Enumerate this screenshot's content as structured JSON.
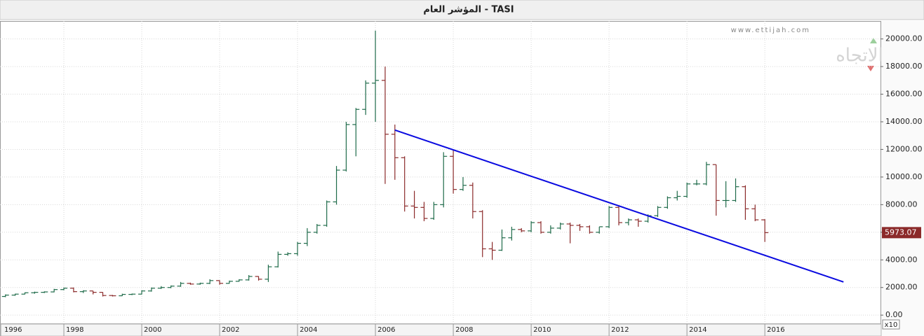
{
  "chart_data": {
    "type": "ohlc",
    "title": "المؤشر العام - TASI",
    "watermark": "www.ettijah.com",
    "logo_text": "الاتجاه",
    "x_multiplier": "x10",
    "up_color": "#1f6b4a",
    "down_color": "#8b2a2a",
    "grid": true,
    "xlim": [
      1996.36,
      2018.97
    ],
    "ylim": [
      -600,
      21300
    ],
    "xticks": [
      1996,
      1998,
      2000,
      2002,
      2004,
      2006,
      2008,
      2010,
      2012,
      2014,
      2016
    ],
    "yticks": [
      {
        "value": 0,
        "label": "0.00"
      },
      {
        "value": 2000,
        "label": "2000.00"
      },
      {
        "value": 4000,
        "label": "4000.00"
      },
      {
        "value": 6000,
        "label": "6000.00"
      },
      {
        "value": 8000,
        "label": "8000.00"
      },
      {
        "value": 10000,
        "label": "10000.00"
      },
      {
        "value": 12000,
        "label": "12000.00"
      },
      {
        "value": 14000,
        "label": "14000.00"
      },
      {
        "value": 16000,
        "label": "16000.00"
      },
      {
        "value": 18000,
        "label": "18000.00"
      },
      {
        "value": 20000,
        "label": "20000.00"
      }
    ],
    "x": [
      1996.5,
      1996.75,
      1997,
      1997.25,
      1997.5,
      1997.75,
      1998,
      1998.25,
      1998.5,
      1998.75,
      1999,
      1999.25,
      1999.5,
      1999.75,
      2000,
      2000.25,
      2000.5,
      2000.75,
      2001,
      2001.25,
      2001.5,
      2001.75,
      2002,
      2002.25,
      2002.5,
      2002.75,
      2003,
      2003.25,
      2003.5,
      2003.75,
      2004,
      2004.25,
      2004.5,
      2004.75,
      2005,
      2005.25,
      2005.5,
      2005.75,
      2006,
      2006.25,
      2006.5,
      2006.75,
      2007,
      2007.25,
      2007.5,
      2007.75,
      2008,
      2008.25,
      2008.5,
      2008.75,
      2009,
      2009.25,
      2009.5,
      2009.75,
      2010,
      2010.25,
      2010.5,
      2010.75,
      2011,
      2011.25,
      2011.5,
      2011.75,
      2012,
      2012.25,
      2012.5,
      2012.75,
      2013,
      2013.25,
      2013.5,
      2013.75,
      2014,
      2014.25,
      2014.5,
      2014.75,
      2015,
      2015.25,
      2015.5,
      2015.75,
      2016
    ],
    "open": [
      1350,
      1450,
      1520,
      1620,
      1650,
      1680,
      1850,
      1950,
      1700,
      1750,
      1650,
      1420,
      1400,
      1500,
      1520,
      1750,
      1950,
      2000,
      2100,
      2300,
      2250,
      2300,
      2500,
      2300,
      2450,
      2550,
      2800,
      2600,
      3500,
      4400,
      4450,
      5200,
      6000,
      6500,
      8200,
      10500,
      13800,
      14900,
      16800,
      17000,
      13100,
      11400,
      7900,
      7800,
      7000,
      8000,
      11500,
      9100,
      9400,
      7500,
      4800,
      4700,
      5600,
      6200,
      6100,
      6700,
      6000,
      6300,
      6600,
      6500,
      6400,
      6000,
      6400,
      7800,
      6700,
      6900,
      6800,
      7200,
      7800,
      8500,
      8600,
      9500,
      9500,
      10900,
      8300,
      8300,
      9300,
      7700,
      6900
    ],
    "high": [
      1500,
      1550,
      1650,
      1700,
      1720,
      1900,
      2000,
      2000,
      1800,
      1760,
      1660,
      1460,
      1550,
      1560,
      1800,
      2000,
      2100,
      2150,
      2400,
      2350,
      2350,
      2600,
      2520,
      2500,
      2600,
      2900,
      2820,
      3650,
      4600,
      4550,
      5300,
      6300,
      6600,
      8300,
      10800,
      14000,
      15000,
      17000,
      20600,
      18000,
      13800,
      11500,
      9000,
      8200,
      8200,
      11800,
      12000,
      10000,
      9600,
      7600,
      5300,
      6200,
      6400,
      6300,
      6800,
      6800,
      6500,
      6700,
      6700,
      6600,
      6500,
      6400,
      7900,
      7950,
      7000,
      7000,
      7300,
      7900,
      8600,
      9000,
      9600,
      9800,
      11100,
      10900,
      9700,
      9900,
      9400,
      8000,
      6950
    ],
    "low": [
      1300,
      1400,
      1500,
      1550,
      1600,
      1650,
      1800,
      1650,
      1600,
      1500,
      1350,
      1350,
      1380,
      1450,
      1500,
      1700,
      1900,
      1950,
      2050,
      2200,
      2200,
      2250,
      2200,
      2280,
      2420,
      2500,
      2500,
      2400,
      3450,
      4300,
      4300,
      5000,
      5900,
      6400,
      8000,
      10400,
      11500,
      14500,
      14000,
      9500,
      9800,
      7500,
      7000,
      6800,
      6900,
      7800,
      8800,
      9000,
      7000,
      4200,
      4000,
      4650,
      5400,
      6000,
      6000,
      5900,
      5900,
      6200,
      5200,
      6100,
      5900,
      5900,
      6300,
      6500,
      6500,
      6400,
      6700,
      7100,
      7700,
      8300,
      8500,
      9400,
      9400,
      7200,
      7800,
      8200,
      6900,
      6800,
      5300
    ],
    "close": [
      1450,
      1520,
      1620,
      1650,
      1680,
      1850,
      1950,
      1700,
      1750,
      1650,
      1420,
      1400,
      1500,
      1520,
      1750,
      1950,
      2000,
      2100,
      2300,
      2250,
      2300,
      2500,
      2300,
      2450,
      2550,
      2800,
      2600,
      3500,
      4400,
      4450,
      5200,
      6000,
      6500,
      8200,
      10500,
      13800,
      14900,
      16800,
      17000,
      13100,
      11400,
      7900,
      7800,
      7000,
      8000,
      11500,
      9100,
      9400,
      7500,
      4800,
      4700,
      5600,
      6200,
      6100,
      6700,
      6000,
      6300,
      6600,
      6500,
      6400,
      6000,
      6400,
      7800,
      6700,
      6900,
      6800,
      7200,
      7800,
      8500,
      8600,
      9500,
      9500,
      10900,
      8300,
      8300,
      9300,
      7700,
      6900,
      5973.07
    ],
    "trendline": {
      "x": [
        2006.5,
        2018.02
      ],
      "y": [
        13400,
        2400
      ],
      "color": "#0a0ae0"
    }
  }
}
